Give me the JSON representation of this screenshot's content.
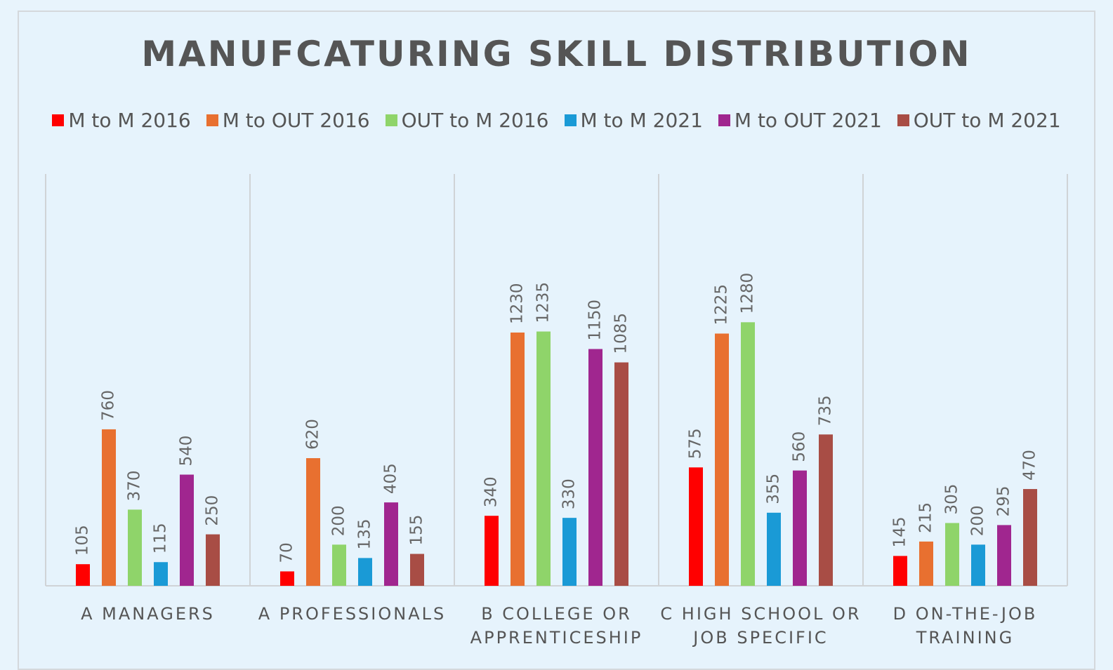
{
  "chart_data": {
    "type": "bar",
    "title": "MANUFCATURING SKILL DISTRIBUTION",
    "categories": [
      "A MANAGERS",
      "A PROFESSIONALS",
      "B COLLEGE OR APPRENTICESHIP",
      "C HIGH SCHOOL OR JOB SPECIFIC",
      "D ON-THE-JOB TRAINING"
    ],
    "series": [
      {
        "name": "M to M 2016",
        "color": "#ff0000",
        "values": [
          105,
          70,
          340,
          575,
          145
        ]
      },
      {
        "name": "M to OUT 2016",
        "color": "#e87030",
        "values": [
          760,
          620,
          1230,
          1225,
          215
        ]
      },
      {
        "name": "OUT to M 2016",
        "color": "#8fd46a",
        "values": [
          370,
          200,
          1235,
          1280,
          305
        ]
      },
      {
        "name": "M to M 2021",
        "color": "#1a9ad6",
        "values": [
          115,
          135,
          330,
          355,
          200
        ]
      },
      {
        "name": "M to OUT 2021",
        "color": "#a0268f",
        "values": [
          540,
          405,
          1150,
          560,
          295
        ]
      },
      {
        "name": "OUT to M 2021",
        "color": "#a84d45",
        "values": [
          250,
          155,
          1085,
          735,
          470
        ]
      }
    ],
    "ylim": [
      0,
      2000
    ],
    "legend": "top"
  }
}
